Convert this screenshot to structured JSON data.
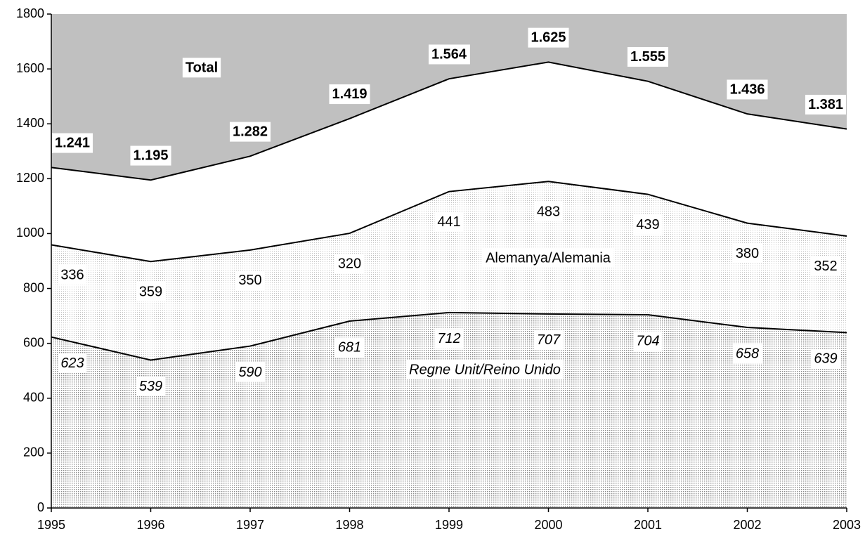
{
  "chart_data": {
    "type": "stacked_area",
    "x": [
      1995,
      1996,
      1997,
      1998,
      1999,
      2000,
      2001,
      2002,
      2003
    ],
    "xlim": [
      1995,
      2003
    ],
    "xticks": [
      1995,
      1996,
      1997,
      1998,
      1999,
      2000,
      2001,
      2002,
      2003
    ],
    "ylim": [
      0,
      1800
    ],
    "yticks": [
      0,
      200,
      400,
      600,
      800,
      1000,
      1200,
      1400,
      1600,
      1800
    ],
    "background": "#c0c0c0",
    "series": [
      {
        "name": "Regne Unit/Reino Unido",
        "color": "#8c8c8c",
        "values": [
          623,
          539,
          590,
          681,
          712,
          707,
          704,
          658,
          639
        ]
      },
      {
        "name": "Alemanya/Alemania",
        "color": "#bdbdbd",
        "values": [
          336,
          359,
          350,
          320,
          441,
          483,
          439,
          380,
          352
        ]
      }
    ],
    "total": {
      "name": "Total",
      "color": "#ffffff",
      "values": [
        1241,
        1195,
        1282,
        1419,
        1564,
        1625,
        1555,
        1436,
        1381
      ],
      "value_labels": [
        "1.241",
        "1.195",
        "1.282",
        "1.419",
        "1.564",
        "1.625",
        "1.555",
        "1.436",
        "1.381"
      ]
    }
  }
}
